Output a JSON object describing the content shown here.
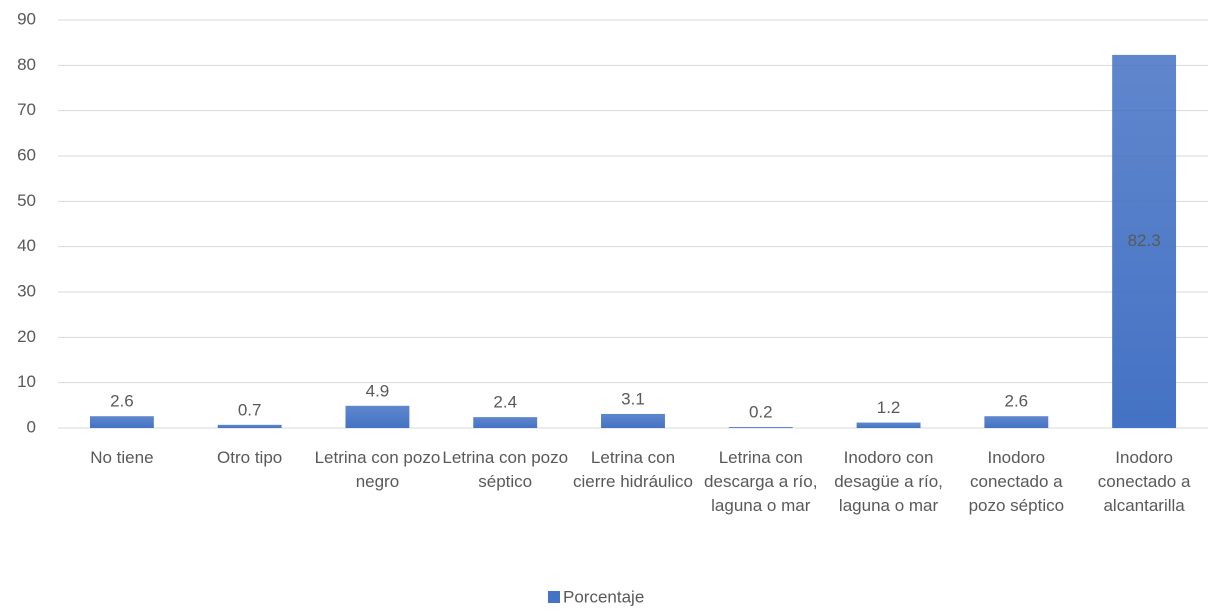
{
  "chart_data": {
    "type": "bar",
    "categories": [
      "No tiene",
      "Otro tipo",
      "Letrina con pozo negro",
      "Letrina con pozo séptico",
      "Letrina con cierre hidráulico",
      "Letrina con descarga a río, laguna o mar",
      "Inodoro con desagüe a río, laguna o mar",
      "Inodoro conectado a pozo séptico",
      "Inodoro conectado a alcantarilla"
    ],
    "series": [
      {
        "name": "Porcentaje",
        "color": "#4472c4",
        "values": [
          2.6,
          0.7,
          4.9,
          2.4,
          3.1,
          0.2,
          1.2,
          2.6,
          82.3
        ]
      }
    ],
    "ylim": [
      0,
      90
    ],
    "yticks": [
      0,
      10,
      20,
      30,
      40,
      50,
      60,
      70,
      80,
      90
    ],
    "grid": true,
    "legend": "bottom"
  }
}
